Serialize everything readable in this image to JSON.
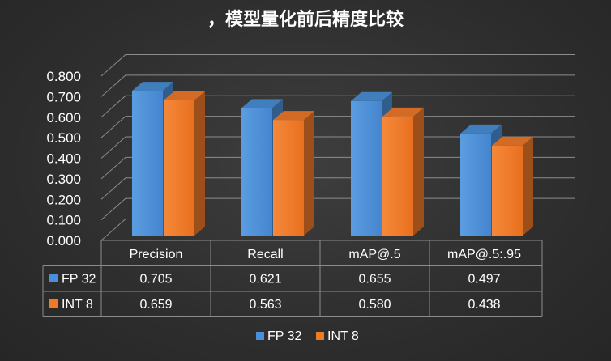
{
  "chart_data": {
    "type": "bar",
    "title": "，模型量化前后精度比较",
    "categories": [
      "Precision",
      "Recall",
      "mAP@.5",
      "mAP@.5:.95"
    ],
    "series": [
      {
        "name": "FP 32",
        "values": [
          0.705,
          0.621,
          0.655,
          0.497
        ],
        "labels": [
          "0.705",
          "0.621",
          "0.655",
          "0.497"
        ]
      },
      {
        "name": "INT 8",
        "values": [
          0.659,
          0.563,
          0.58,
          0.438
        ],
        "labels": [
          "0.659",
          "0.563",
          "0.580",
          "0.438"
        ]
      }
    ],
    "ylim": [
      0,
      0.8
    ],
    "yticks": [
      0.0,
      0.1,
      0.2,
      0.3,
      0.4,
      0.5,
      0.6,
      0.7,
      0.8
    ],
    "ytick_labels": [
      "0.000",
      "0.100",
      "0.200",
      "0.300",
      "0.400",
      "0.500",
      "0.600",
      "0.700",
      "0.800"
    ],
    "grid": true,
    "data_table": true,
    "legend": "bottom",
    "style": "3d-clustered-column"
  },
  "colors": {
    "series": [
      "#4a8fd8",
      "#f07a2a"
    ],
    "background": "#2f2f2f",
    "grid": "#8c8c8c",
    "text": "#ffffff"
  }
}
